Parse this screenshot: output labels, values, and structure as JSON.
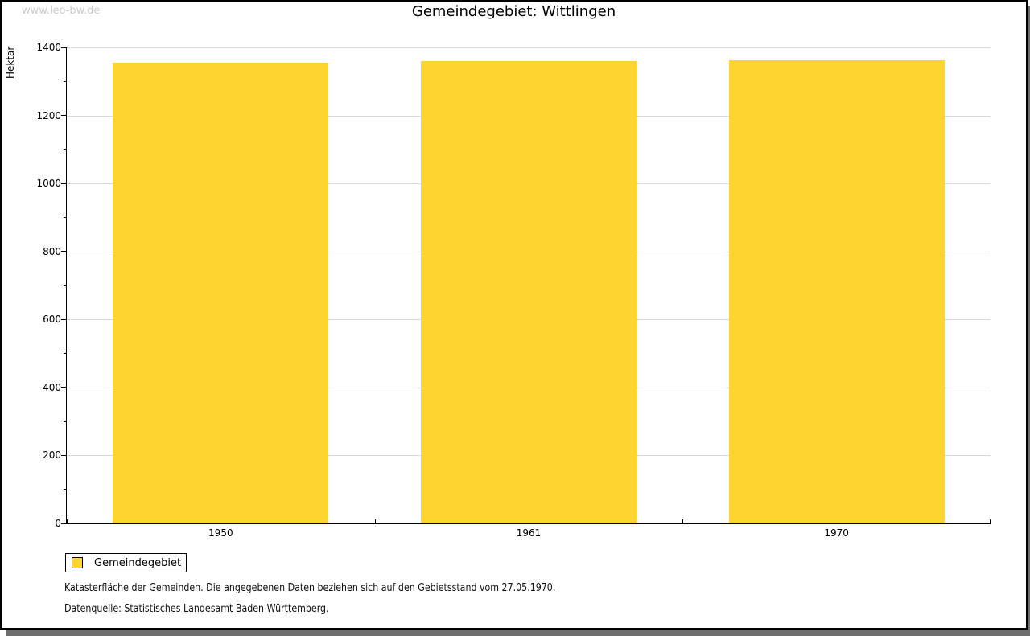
{
  "watermark": "www.leo-bw.de",
  "title": "Gemeindegebiet: Wittlingen",
  "chart_data": {
    "type": "bar",
    "title": "Gemeindegebiet: Wittlingen",
    "categories": [
      "1950",
      "1961",
      "1970"
    ],
    "series": [
      {
        "name": "Gemeindegebiet",
        "values": [
          1356,
          1360,
          1362
        ]
      }
    ],
    "xlabel": "",
    "ylabel": "Hektar",
    "ylim": [
      0,
      1400
    ],
    "ytick_major": 200,
    "ytick_minor": 100,
    "grid": "horizontal-major-only",
    "legend_position": "bottom-left",
    "bar_color": "#fdd430"
  },
  "legend": {
    "label": "Gemeindegebiet",
    "swatch_color": "#fdd430"
  },
  "footer": {
    "line1": "Katasterfläche der Gemeinden. Die angegebenen Daten beziehen sich auf den Gebietsstand vom 27.05.1970.",
    "line2": "Datenquelle: Statistisches Landesamt Baden-Württemberg."
  },
  "colors": {
    "bar": "#fdd430",
    "gridline": "#d8d8d8",
    "axis": "#000000",
    "watermark": "#cbcbcb",
    "shadow": "#6e6e6e",
    "background": "#ffffff"
  }
}
